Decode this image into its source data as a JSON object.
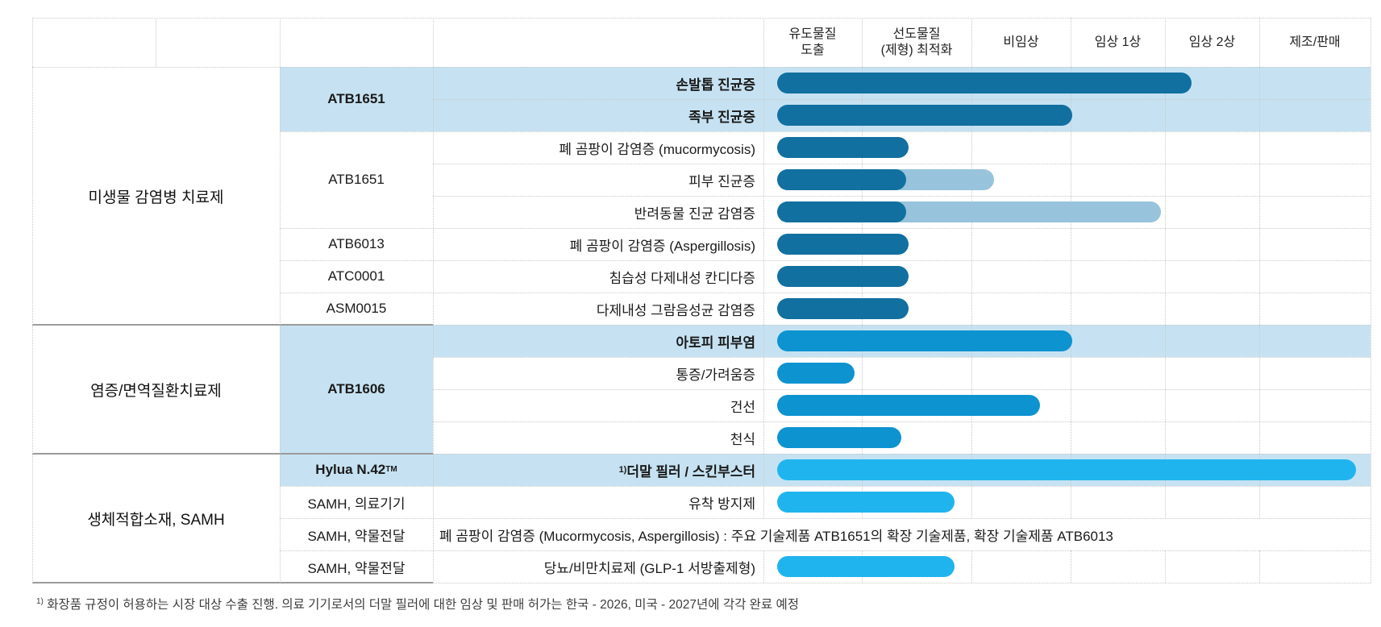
{
  "colors": {
    "highlight": "#c6e2f2",
    "bar_dark": "#11709f",
    "bar_light": "#97c3dc",
    "bar_medium": "#0d93d0",
    "bar_cyan": "#20b4ee",
    "grid_dotted": "#c9c9c9",
    "grid_solid": "#9b9b9b"
  },
  "stage_columns": [
    {
      "label": "유도물질 도출",
      "lines": [
        "유도물질",
        "도출"
      ]
    },
    {
      "label": "선도물질 (제형) 최적화",
      "lines": [
        "선도물질",
        "(제형) 최적화"
      ]
    },
    {
      "label": "비임상",
      "lines": [
        "비임상"
      ]
    },
    {
      "label": "임상 1상",
      "lines": [
        "임상 1상"
      ]
    },
    {
      "label": "임상 2상",
      "lines": [
        "임상 2상"
      ]
    },
    {
      "label": "제조/판매",
      "lines": [
        "제조/판매"
      ]
    }
  ],
  "categories": [
    {
      "label": "미생물 감염병 치료제",
      "row_start": 0,
      "row_end": 7
    },
    {
      "label": "염증/면역질환치료제",
      "row_start": 8,
      "row_end": 11
    },
    {
      "label": "생체적합소재, SAMH",
      "row_start": 12,
      "row_end": 15
    }
  ],
  "products": [
    {
      "label": "ATB1651",
      "sup": "",
      "bold": true,
      "highlight": true,
      "row_start": 0,
      "row_end": 1
    },
    {
      "label": "ATB1651",
      "sup": "",
      "bold": false,
      "highlight": false,
      "row_start": 2,
      "row_end": 4
    },
    {
      "label": "ATB6013",
      "sup": "",
      "bold": false,
      "highlight": false,
      "row_start": 5,
      "row_end": 5
    },
    {
      "label": "ATC0001",
      "sup": "",
      "bold": false,
      "highlight": false,
      "row_start": 6,
      "row_end": 6
    },
    {
      "label": "ASM0015",
      "sup": "",
      "bold": false,
      "highlight": false,
      "row_start": 7,
      "row_end": 7
    },
    {
      "label": "ATB1606",
      "sup": "",
      "bold": true,
      "highlight": true,
      "row_start": 8,
      "row_end": 11
    },
    {
      "label": "Hylua N.42",
      "sup": "TM",
      "bold": true,
      "highlight": true,
      "row_start": 12,
      "row_end": 12
    },
    {
      "label": "SAMH, 의료기기",
      "sup": "",
      "bold": false,
      "highlight": false,
      "row_start": 13,
      "row_end": 13
    },
    {
      "label": "SAMH, 약물전달",
      "sup": "",
      "bold": false,
      "highlight": false,
      "row_start": 14,
      "row_end": 14
    },
    {
      "label": "SAMH, 약물전달",
      "sup": "",
      "bold": false,
      "highlight": false,
      "row_start": 15,
      "row_end": 15
    }
  ],
  "rows": [
    {
      "indication": "손발톱 진균증",
      "sup_prefix": "",
      "bold": true,
      "highlight_row": true,
      "wide_text": false,
      "bars": [
        {
          "color": "bar_dark",
          "from": 964,
          "to": 1478
        }
      ]
    },
    {
      "indication": "족부 진균증",
      "sup_prefix": "",
      "bold": true,
      "highlight_row": true,
      "wide_text": false,
      "bars": [
        {
          "color": "bar_dark",
          "from": 964,
          "to": 1330
        }
      ]
    },
    {
      "indication": "폐 곰팡이 감염증 (mucormycosis)",
      "sup_prefix": "",
      "bold": false,
      "highlight_row": false,
      "wide_text": false,
      "bars": [
        {
          "color": "bar_dark",
          "from": 964,
          "to": 1127
        }
      ]
    },
    {
      "indication": "피부 진균증",
      "sup_prefix": "",
      "bold": false,
      "highlight_row": false,
      "wide_text": false,
      "bars": [
        {
          "color": "bar_light",
          "from": 964,
          "to": 1233
        },
        {
          "color": "bar_dark",
          "from": 964,
          "to": 1124
        }
      ]
    },
    {
      "indication": "반려동물 진균 감염증",
      "sup_prefix": "",
      "bold": false,
      "highlight_row": false,
      "wide_text": false,
      "bars": [
        {
          "color": "bar_light",
          "from": 964,
          "to": 1440
        },
        {
          "color": "bar_dark",
          "from": 964,
          "to": 1124
        }
      ]
    },
    {
      "indication": "폐 곰팡이 감염증 (Aspergillosis)",
      "sup_prefix": "",
      "bold": false,
      "highlight_row": false,
      "wide_text": false,
      "bars": [
        {
          "color": "bar_dark",
          "from": 964,
          "to": 1127
        }
      ]
    },
    {
      "indication": "침습성 다제내성 칸디다증",
      "sup_prefix": "",
      "bold": false,
      "highlight_row": false,
      "wide_text": false,
      "bars": [
        {
          "color": "bar_dark",
          "from": 964,
          "to": 1127
        }
      ]
    },
    {
      "indication": "다제내성 그람음성균 감염증",
      "sup_prefix": "",
      "bold": false,
      "highlight_row": false,
      "wide_text": false,
      "bars": [
        {
          "color": "bar_dark",
          "from": 964,
          "to": 1127
        }
      ]
    },
    {
      "indication": "아토피 피부염",
      "sup_prefix": "",
      "bold": true,
      "highlight_row": true,
      "wide_text": false,
      "bars": [
        {
          "color": "bar_medium",
          "from": 964,
          "to": 1330
        }
      ]
    },
    {
      "indication": "통증/가려움증",
      "sup_prefix": "",
      "bold": false,
      "highlight_row": false,
      "wide_text": false,
      "bars": [
        {
          "color": "bar_medium",
          "from": 964,
          "to": 1060
        }
      ]
    },
    {
      "indication": "건선",
      "sup_prefix": "",
      "bold": false,
      "highlight_row": false,
      "wide_text": false,
      "bars": [
        {
          "color": "bar_medium",
          "from": 964,
          "to": 1290
        }
      ]
    },
    {
      "indication": "천식",
      "sup_prefix": "",
      "bold": false,
      "highlight_row": false,
      "wide_text": false,
      "bars": [
        {
          "color": "bar_medium",
          "from": 964,
          "to": 1118
        }
      ]
    },
    {
      "indication": "더말 필러 / 스킨부스터",
      "sup_prefix": "1)",
      "bold": true,
      "highlight_row": true,
      "wide_text": false,
      "bars": [
        {
          "color": "bar_cyan",
          "from": 964,
          "to": 1682
        }
      ]
    },
    {
      "indication": "유착 방지제",
      "sup_prefix": "",
      "bold": false,
      "highlight_row": false,
      "wide_text": false,
      "bars": [
        {
          "color": "bar_cyan",
          "from": 964,
          "to": 1184
        }
      ]
    },
    {
      "indication": "폐 곰팡이 감염증 (Mucormycosis, Aspergillosis) : 주요 기술제품 ATB1651의 확장 기술제품, 확장 기술제품 ATB6013",
      "sup_prefix": "",
      "bold": false,
      "highlight_row": false,
      "wide_text": true,
      "bars": []
    },
    {
      "indication": "당뇨/비만치료제 (GLP-1 서방출제형)",
      "sup_prefix": "",
      "bold": false,
      "highlight_row": false,
      "wide_text": false,
      "bars": [
        {
          "color": "bar_cyan",
          "from": 964,
          "to": 1184
        }
      ]
    }
  ],
  "footnote": {
    "sup": "1)",
    "text": "화장품 규정이 허용하는 시장 대상 수출 진행. 의료 기기로서의 더말 필러에 대한 임상 및 판매 허가는 한국 - 2026, 미국 - 2027년에 각각 완료 예정"
  },
  "chart_data": {
    "type": "bar",
    "orientation": "horizontal",
    "title": "",
    "stages": [
      "유도물질 도출",
      "선도물질 (제형) 최적화",
      "비임상",
      "임상 1상",
      "임상 2상",
      "제조/판매"
    ],
    "value_scale": "progress in stage units; 0 = start of 유도물질 도출, 6 = end of 제조/판매",
    "series": [
      {
        "category": "미생물 감염병 치료제",
        "product": "ATB1651",
        "indication": "손발톱 진균증",
        "progress": 4.3,
        "planned_extension": null
      },
      {
        "category": "미생물 감염병 치료제",
        "product": "ATB1651",
        "indication": "족부 진균증",
        "progress": 3.0,
        "planned_extension": null
      },
      {
        "category": "미생물 감염병 치료제",
        "product": "ATB1651",
        "indication": "폐 곰팡이 감염증 (mucormycosis)",
        "progress": 1.4,
        "planned_extension": null
      },
      {
        "category": "미생물 감염병 치료제",
        "product": "ATB1651",
        "indication": "피부 진균증",
        "progress": 1.4,
        "planned_extension": 2.2
      },
      {
        "category": "미생물 감염병 치료제",
        "product": "ATB1651",
        "indication": "반려동물 진균 감염증",
        "progress": 1.4,
        "planned_extension": 4.0
      },
      {
        "category": "미생물 감염병 치료제",
        "product": "ATB6013",
        "indication": "폐 곰팡이 감염증 (Aspergillosis)",
        "progress": 1.4,
        "planned_extension": null
      },
      {
        "category": "미생물 감염병 치료제",
        "product": "ATC0001",
        "indication": "침습성 다제내성 칸디다증",
        "progress": 1.4,
        "planned_extension": null
      },
      {
        "category": "미생물 감염병 치료제",
        "product": "ASM0015",
        "indication": "다제내성 그람음성균 감염증",
        "progress": 1.4,
        "planned_extension": null
      },
      {
        "category": "염증/면역질환치료제",
        "product": "ATB1606",
        "indication": "아토피 피부염",
        "progress": 3.0,
        "planned_extension": null
      },
      {
        "category": "염증/면역질환치료제",
        "product": "ATB1606",
        "indication": "통증/가려움증",
        "progress": 0.9,
        "planned_extension": null
      },
      {
        "category": "염증/면역질환치료제",
        "product": "ATB1606",
        "indication": "건선",
        "progress": 2.7,
        "planned_extension": null
      },
      {
        "category": "염증/면역질환치료제",
        "product": "ATB1606",
        "indication": "천식",
        "progress": 1.4,
        "planned_extension": null
      },
      {
        "category": "생체적합소재, SAMH",
        "product": "Hylua N.42TM",
        "indication": "더말 필러 / 스킨부스터",
        "progress": 5.9,
        "planned_extension": null
      },
      {
        "category": "생체적합소재, SAMH",
        "product": "SAMH, 의료기기",
        "indication": "유착 방지제",
        "progress": 1.9,
        "planned_extension": null
      },
      {
        "category": "생체적합소재, SAMH",
        "product": "SAMH, 약물전달",
        "indication": "폐 곰팡이 감염증 (Mucormycosis, Aspergillosis) : 주요 기술제품 ATB1651의 확장 기술제품, 확장 기술제품 ATB6013",
        "progress": null,
        "planned_extension": null
      },
      {
        "category": "생체적합소재, SAMH",
        "product": "SAMH, 약물전달",
        "indication": "당뇨/비만치료제 (GLP-1 서방출제형)",
        "progress": 1.9,
        "planned_extension": null
      }
    ]
  }
}
